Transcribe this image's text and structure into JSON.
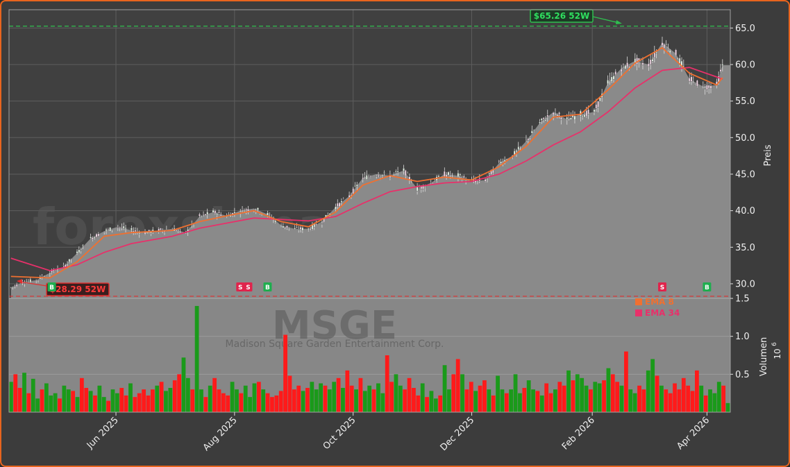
{
  "chart_data": {
    "type": "candlestick",
    "ticker": "MSGE",
    "company": "Madison Square Garden Entertainment Corp.",
    "watermark": "forexsignale.trade",
    "ylabel_price": "Preis",
    "ylabel_volume": "Volumen",
    "volume_exponent": "10",
    "volume_exponent_power": "6",
    "price_ylim": [
      28.0,
      67.5
    ],
    "volume_ylim": [
      0,
      1.5
    ],
    "x_tick_labels": [
      "Jun 2025",
      "Aug 2025",
      "Oct 2025",
      "Dec 2025",
      "Feb 2026",
      "Apr 2026"
    ],
    "price_ticks": [
      "30.0",
      "35.0",
      "40.0",
      "45.0",
      "50.0",
      "55.0",
      "60.0",
      "65.0"
    ],
    "volume_ticks": [
      "0.5",
      "1.0",
      "1.5"
    ],
    "high_52w": {
      "label": "$65.26 52W",
      "value": 65.26
    },
    "low_52w": {
      "label": "$28.29 52W",
      "value": 28.29
    },
    "last_price": 59.9,
    "legend": [
      {
        "name": "EMA 8",
        "color": "#f07030"
      },
      {
        "name": "EMA 34",
        "color": "#e8306a"
      }
    ],
    "signals": [
      {
        "date": "2025-04-29",
        "type": "B"
      },
      {
        "date": "2025-08-04",
        "type": "S"
      },
      {
        "date": "2025-08-08",
        "type": "S"
      },
      {
        "date": "2025-08-18",
        "type": "B"
      },
      {
        "date": "2026-03-09",
        "type": "S"
      },
      {
        "date": "2026-04-01",
        "type": "B"
      }
    ],
    "price_points": [
      [
        "2025-04-08",
        29.5
      ],
      [
        "2025-04-14",
        30.2
      ],
      [
        "2025-04-21",
        30.5
      ],
      [
        "2025-04-28",
        31.5
      ],
      [
        "2025-05-05",
        32.3
      ],
      [
        "2025-05-12",
        34.2
      ],
      [
        "2025-05-19",
        36.2
      ],
      [
        "2025-05-26",
        37.2
      ],
      [
        "2025-06-02",
        37.8
      ],
      [
        "2025-06-09",
        37.3
      ],
      [
        "2025-06-16",
        37.0
      ],
      [
        "2025-06-23",
        37.3
      ],
      [
        "2025-06-30",
        37.5
      ],
      [
        "2025-07-07",
        37.0
      ],
      [
        "2025-07-14",
        39.2
      ],
      [
        "2025-07-21",
        39.8
      ],
      [
        "2025-07-28",
        39.3
      ],
      [
        "2025-08-04",
        40.0
      ],
      [
        "2025-08-11",
        40.3
      ],
      [
        "2025-08-18",
        39.5
      ],
      [
        "2025-08-25",
        38.0
      ],
      [
        "2025-09-01",
        37.5
      ],
      [
        "2025-09-08",
        37.5
      ],
      [
        "2025-09-15",
        38.5
      ],
      [
        "2025-09-22",
        40.5
      ],
      [
        "2025-09-29",
        42.0
      ],
      [
        "2025-10-06",
        44.5
      ],
      [
        "2025-10-13",
        45.0
      ],
      [
        "2025-10-20",
        44.8
      ],
      [
        "2025-10-27",
        45.5
      ],
      [
        "2025-11-03",
        43.0
      ],
      [
        "2025-11-10",
        43.8
      ],
      [
        "2025-11-17",
        45.0
      ],
      [
        "2025-11-24",
        44.8
      ],
      [
        "2025-12-01",
        44.0
      ],
      [
        "2025-12-08",
        44.2
      ],
      [
        "2025-12-15",
        46.5
      ],
      [
        "2025-12-22",
        47.5
      ],
      [
        "2025-12-29",
        49.5
      ],
      [
        "2026-01-05",
        52.0
      ],
      [
        "2026-01-12",
        53.5
      ],
      [
        "2026-01-19",
        52.5
      ],
      [
        "2026-01-26",
        53.2
      ],
      [
        "2026-02-02",
        53.5
      ],
      [
        "2026-02-09",
        57.5
      ],
      [
        "2026-02-16",
        59.5
      ],
      [
        "2026-02-23",
        60.5
      ],
      [
        "2026-03-02",
        60.0
      ],
      [
        "2026-03-09",
        63.0
      ],
      [
        "2026-03-16",
        61.5
      ],
      [
        "2026-03-23",
        58.0
      ],
      [
        "2026-03-30",
        57.0
      ],
      [
        "2026-04-06",
        57.2
      ],
      [
        "2026-04-09",
        59.9
      ]
    ],
    "ema8": [
      [
        "2025-04-08",
        31.0
      ],
      [
        "2025-04-28",
        30.8
      ],
      [
        "2025-05-12",
        33.0
      ],
      [
        "2025-05-26",
        36.5
      ],
      [
        "2025-06-09",
        37.0
      ],
      [
        "2025-06-30",
        37.3
      ],
      [
        "2025-07-14",
        38.5
      ],
      [
        "2025-07-28",
        39.3
      ],
      [
        "2025-08-11",
        40.0
      ],
      [
        "2025-08-25",
        38.5
      ],
      [
        "2025-09-08",
        37.8
      ],
      [
        "2025-09-22",
        39.8
      ],
      [
        "2025-10-06",
        43.5
      ],
      [
        "2025-10-20",
        44.8
      ],
      [
        "2025-11-03",
        44.0
      ],
      [
        "2025-11-17",
        44.6
      ],
      [
        "2025-12-01",
        44.2
      ],
      [
        "2025-12-15",
        46.0
      ],
      [
        "2025-12-29",
        48.8
      ],
      [
        "2026-01-12",
        52.8
      ],
      [
        "2026-01-26",
        53.2
      ],
      [
        "2026-02-09",
        56.5
      ],
      [
        "2026-02-23",
        60.2
      ],
      [
        "2026-03-09",
        62.3
      ],
      [
        "2026-03-23",
        58.8
      ],
      [
        "2026-04-06",
        57.2
      ],
      [
        "2026-04-09",
        58.2
      ]
    ],
    "ema34": [
      [
        "2025-04-08",
        33.5
      ],
      [
        "2025-04-28",
        31.8
      ],
      [
        "2025-05-12",
        32.6
      ],
      [
        "2025-05-26",
        34.3
      ],
      [
        "2025-06-09",
        35.5
      ],
      [
        "2025-06-30",
        36.5
      ],
      [
        "2025-07-14",
        37.6
      ],
      [
        "2025-07-28",
        38.3
      ],
      [
        "2025-08-11",
        39.0
      ],
      [
        "2025-08-25",
        38.8
      ],
      [
        "2025-09-08",
        38.6
      ],
      [
        "2025-09-22",
        39.2
      ],
      [
        "2025-10-06",
        41.0
      ],
      [
        "2025-10-20",
        42.6
      ],
      [
        "2025-11-03",
        43.3
      ],
      [
        "2025-11-17",
        43.8
      ],
      [
        "2025-12-01",
        44.0
      ],
      [
        "2025-12-15",
        45.0
      ],
      [
        "2025-12-29",
        46.8
      ],
      [
        "2026-01-12",
        49.0
      ],
      [
        "2026-01-26",
        50.8
      ],
      [
        "2026-02-09",
        53.5
      ],
      [
        "2026-02-23",
        56.8
      ],
      [
        "2026-03-09",
        59.2
      ],
      [
        "2026-03-23",
        59.6
      ],
      [
        "2026-04-06",
        58.3
      ],
      [
        "2026-04-09",
        58.0
      ]
    ],
    "volume_m": [
      0.4,
      0.5,
      0.32,
      0.52,
      0.25,
      0.44,
      0.18,
      0.3,
      0.38,
      0.22,
      0.25,
      0.18,
      0.35,
      0.3,
      0.28,
      0.2,
      0.45,
      0.32,
      0.28,
      0.22,
      0.35,
      0.2,
      0.15,
      0.3,
      0.25,
      0.32,
      0.22,
      0.38,
      0.2,
      0.25,
      0.3,
      0.22,
      0.3,
      0.35,
      0.4,
      0.28,
      0.32,
      0.42,
      0.5,
      0.72,
      0.45,
      0.3,
      1.4,
      0.3,
      0.2,
      0.35,
      0.45,
      0.3,
      0.25,
      0.22,
      0.4,
      0.3,
      0.25,
      0.35,
      0.2,
      0.38,
      0.4,
      0.3,
      0.25,
      0.2,
      0.22,
      0.28,
      1.02,
      0.48,
      0.3,
      0.35,
      0.28,
      0.32,
      0.4,
      0.3,
      0.38,
      0.35,
      0.3,
      0.4,
      0.45,
      0.32,
      0.55,
      0.35,
      0.3,
      0.45,
      0.28,
      0.35,
      0.3,
      0.38,
      0.25,
      0.75,
      0.4,
      0.5,
      0.35,
      0.3,
      0.45,
      0.32,
      0.22,
      0.38,
      0.2,
      0.28,
      0.18,
      0.22,
      0.62,
      0.3,
      0.5,
      0.7,
      0.5,
      0.3,
      0.4,
      0.28,
      0.35,
      0.42,
      0.3,
      0.22,
      0.48,
      0.3,
      0.25,
      0.3,
      0.5,
      0.25,
      0.32,
      0.42,
      0.3,
      0.28,
      0.22,
      0.38,
      0.25,
      0.3,
      0.4,
      0.35,
      0.55,
      0.42,
      0.5,
      0.45,
      0.35,
      0.3,
      0.4,
      0.38,
      0.42,
      0.58,
      0.5,
      0.4,
      0.35,
      0.8,
      0.3,
      0.25,
      0.35,
      0.3,
      0.55,
      0.7,
      0.48,
      0.35,
      0.3,
      0.25,
      0.38,
      0.3,
      0.45,
      0.35,
      0.28,
      0.55,
      0.35,
      0.22,
      0.3,
      0.25,
      0.4,
      0.35,
      0.12
    ]
  }
}
